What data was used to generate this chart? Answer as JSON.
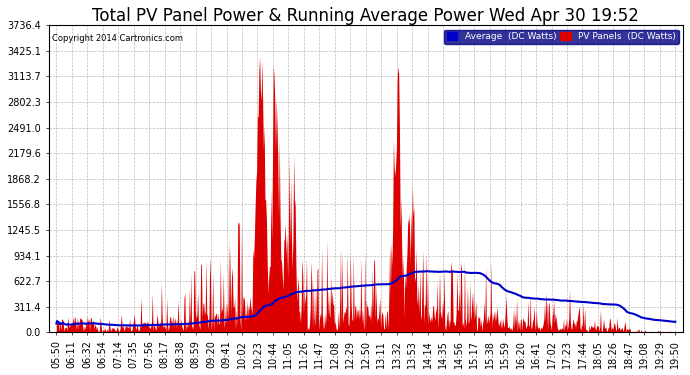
{
  "title": "Total PV Panel Power & Running Average Power Wed Apr 30 19:52",
  "copyright": "Copyright 2014 Cartronics.com",
  "legend_avg": "Average  (DC Watts)",
  "legend_pv": "PV Panels  (DC Watts)",
  "yticks": [
    0.0,
    311.4,
    622.7,
    934.1,
    1245.5,
    1556.8,
    1868.2,
    2179.6,
    2491.0,
    2802.3,
    3113.7,
    3425.1,
    3736.4
  ],
  "ymax": 3736.4,
  "ymin": 0.0,
  "bg_color": "#ffffff",
  "plot_bg_color": "#ffffff",
  "grid_color": "#bbbbbb",
  "pv_fill_color": "#dd0000",
  "avg_line_color": "#0000cc",
  "title_fontsize": 12,
  "axis_fontsize": 7,
  "xtick_labels": [
    "05:50",
    "06:11",
    "06:32",
    "06:54",
    "07:14",
    "07:35",
    "07:56",
    "08:17",
    "08:38",
    "08:59",
    "09:20",
    "09:41",
    "10:02",
    "10:23",
    "10:44",
    "11:05",
    "11:26",
    "11:47",
    "12:08",
    "12:29",
    "12:50",
    "13:11",
    "13:32",
    "13:53",
    "14:14",
    "14:35",
    "14:56",
    "15:17",
    "15:38",
    "15:59",
    "16:20",
    "16:41",
    "17:02",
    "17:23",
    "17:44",
    "18:05",
    "18:26",
    "18:47",
    "19:08",
    "19:29",
    "19:50"
  ]
}
